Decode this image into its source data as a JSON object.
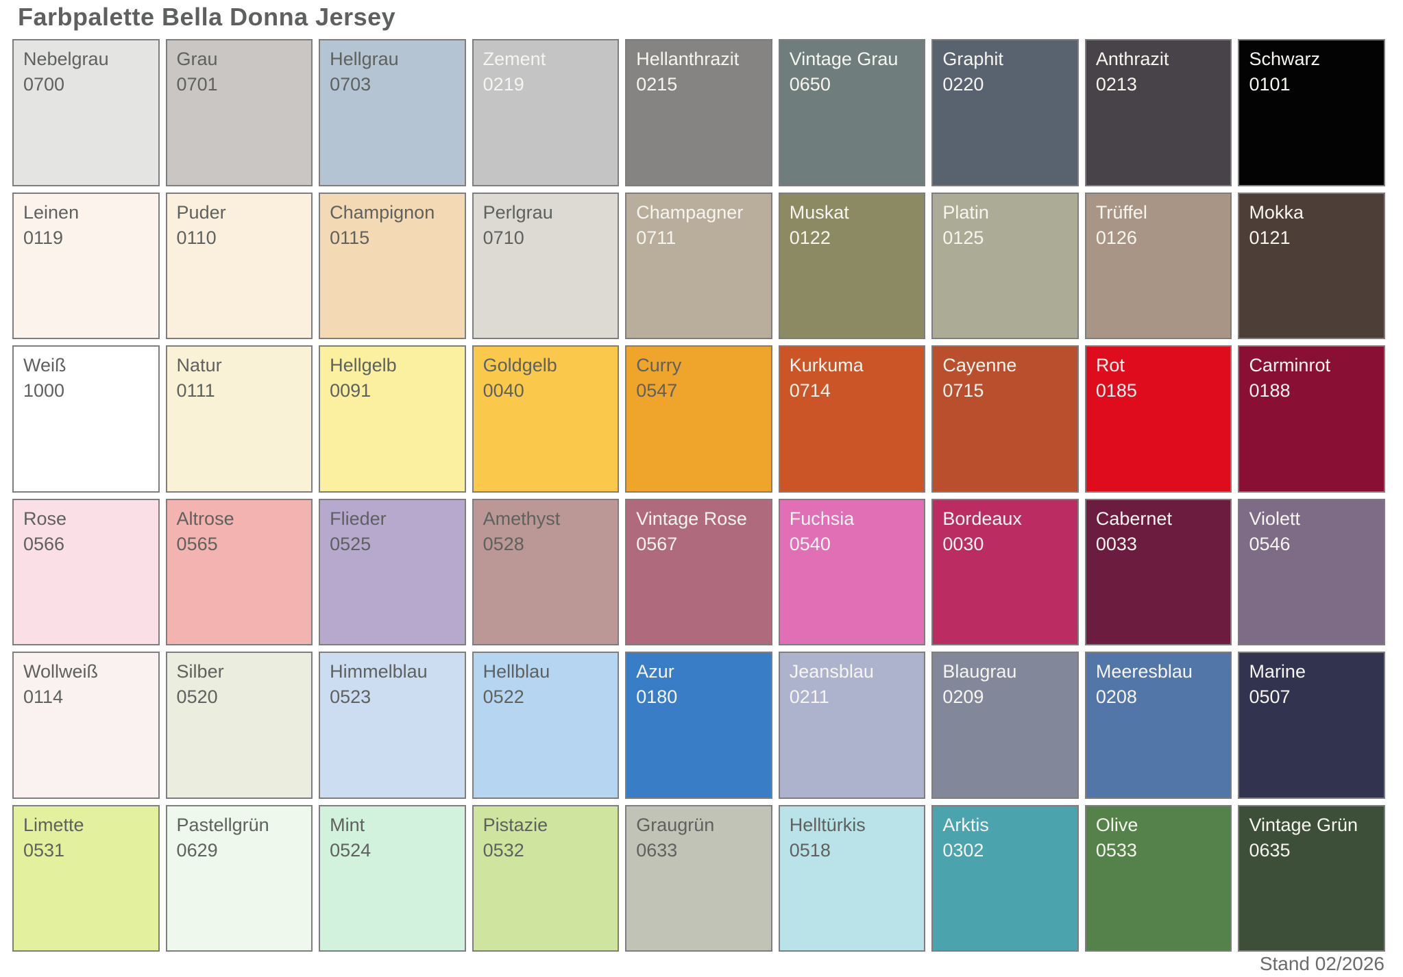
{
  "title": "Farbpalette Bella Donna Jersey",
  "footer": {
    "stand_label": "Stand 02/2026"
  },
  "palette_meta": {
    "rows": 6,
    "columns": 9,
    "swatch_border_color": "#7e7e7e",
    "dark_text_color": "#5e615e",
    "light_text_color": "#f7f5f0",
    "title_color": "#5e605f"
  },
  "chart_data": {
    "type": "table",
    "title": "Farbpalette Bella Donna Jersey",
    "columns": [
      "name",
      "code",
      "hex",
      "text"
    ],
    "grid": {
      "rows": 6,
      "columns": 9
    },
    "swatches": [
      {
        "name": "Nebelgrau",
        "code": "0700",
        "hex": "#e4e4e3",
        "text": "dark"
      },
      {
        "name": "Grau",
        "code": "0701",
        "hex": "#cac6c4",
        "text": "dark"
      },
      {
        "name": "Hellgrau",
        "code": "0703",
        "hex": "#b5c4d2",
        "text": "dark"
      },
      {
        "name": "Zement",
        "code": "0219",
        "hex": "#c3c4c3",
        "text": "light"
      },
      {
        "name": "Hellanthrazit",
        "code": "0215",
        "hex": "#868482",
        "text": "light"
      },
      {
        "name": "Vintage Grau",
        "code": "0650",
        "hex": "#6f7e7c",
        "text": "light"
      },
      {
        "name": "Graphit",
        "code": "0220",
        "hex": "#59636f",
        "text": "light"
      },
      {
        "name": "Anthrazit",
        "code": "0213",
        "hex": "#474349",
        "text": "light"
      },
      {
        "name": "Schwarz",
        "code": "0101",
        "hex": "#030303",
        "text": "light"
      },
      {
        "name": "Leinen",
        "code": "0119",
        "hex": "#fcf3ed",
        "text": "dark"
      },
      {
        "name": "Puder",
        "code": "0110",
        "hex": "#fbf0dd",
        "text": "dark"
      },
      {
        "name": "Champignon",
        "code": "0115",
        "hex": "#f4dab4",
        "text": "dark"
      },
      {
        "name": "Perlgrau",
        "code": "0710",
        "hex": "#dcdad2",
        "text": "dark"
      },
      {
        "name": "Champagner",
        "code": "0711",
        "hex": "#b9ae9c",
        "text": "light"
      },
      {
        "name": "Muskat",
        "code": "0122",
        "hex": "#8b8a62",
        "text": "light"
      },
      {
        "name": "Platin",
        "code": "0125",
        "hex": "#abab96",
        "text": "light"
      },
      {
        "name": "Trüffel",
        "code": "0126",
        "hex": "#a89585",
        "text": "light"
      },
      {
        "name": "Mokka",
        "code": "0121",
        "hex": "#4d3f37",
        "text": "light"
      },
      {
        "name": "Weiß",
        "code": "1000",
        "hex": "#ffffff",
        "text": "dark"
      },
      {
        "name": "Natur",
        "code": "0111",
        "hex": "#faf2d7",
        "text": "dark"
      },
      {
        "name": "Hellgelb",
        "code": "0091",
        "hex": "#fbf0a0",
        "text": "dark"
      },
      {
        "name": "Goldgelb",
        "code": "0040",
        "hex": "#fac84b",
        "text": "dark"
      },
      {
        "name": "Curry",
        "code": "0547",
        "hex": "#efa42c",
        "text": "dark"
      },
      {
        "name": "Kurkuma",
        "code": "0714",
        "hex": "#cb5527",
        "text": "light"
      },
      {
        "name": "Cayenne",
        "code": "0715",
        "hex": "#b94f2c",
        "text": "light"
      },
      {
        "name": "Rot",
        "code": "0185",
        "hex": "#df0c1e",
        "text": "light"
      },
      {
        "name": "Carminrot",
        "code": "0188",
        "hex": "#8a0f35",
        "text": "light"
      },
      {
        "name": "Rose",
        "code": "0566",
        "hex": "#fadfe6",
        "text": "dark"
      },
      {
        "name": "Altrose",
        "code": "0565",
        "hex": "#f3b3b0",
        "text": "dark"
      },
      {
        "name": "Flieder",
        "code": "0525",
        "hex": "#b6a9cd",
        "text": "dark"
      },
      {
        "name": "Amethyst",
        "code": "0528",
        "hex": "#bb9795",
        "text": "dark"
      },
      {
        "name": "Vintage Rose",
        "code": "0567",
        "hex": "#b06a7d",
        "text": "light"
      },
      {
        "name": "Fuchsia",
        "code": "0540",
        "hex": "#e06fb5",
        "text": "light"
      },
      {
        "name": "Bordeaux",
        "code": "0030",
        "hex": "#bb2c62",
        "text": "light"
      },
      {
        "name": "Cabernet",
        "code": "0033",
        "hex": "#6c1c3e",
        "text": "light"
      },
      {
        "name": "Violett",
        "code": "0546",
        "hex": "#7e6b85",
        "text": "light"
      },
      {
        "name": "Wollweiß",
        "code": "0114",
        "hex": "#faf2f0",
        "text": "dark"
      },
      {
        "name": "Silber",
        "code": "0520",
        "hex": "#ebeddf",
        "text": "dark"
      },
      {
        "name": "Himmelblau",
        "code": "0523",
        "hex": "#ccdcf1",
        "text": "dark"
      },
      {
        "name": "Hellblau",
        "code": "0522",
        "hex": "#b5d5f1",
        "text": "dark"
      },
      {
        "name": "Azur",
        "code": "0180",
        "hex": "#3a7dc7",
        "text": "light"
      },
      {
        "name": "Jeansblau",
        "code": "0211",
        "hex": "#aeb3cd",
        "text": "light"
      },
      {
        "name": "Blaugrau",
        "code": "0209",
        "hex": "#83879a",
        "text": "light"
      },
      {
        "name": "Meeresblau",
        "code": "0208",
        "hex": "#5376a8",
        "text": "light"
      },
      {
        "name": "Marine",
        "code": "0507",
        "hex": "#32334e",
        "text": "light"
      },
      {
        "name": "Limette",
        "code": "0531",
        "hex": "#e3f09e",
        "text": "dark"
      },
      {
        "name": "Pastellgrün",
        "code": "0629",
        "hex": "#eef8ec",
        "text": "dark"
      },
      {
        "name": "Mint",
        "code": "0524",
        "hex": "#d3f2de",
        "text": "dark"
      },
      {
        "name": "Pistazie",
        "code": "0532",
        "hex": "#cfe49e",
        "text": "dark"
      },
      {
        "name": "Graugrün",
        "code": "0633",
        "hex": "#c1c3b6",
        "text": "dark"
      },
      {
        "name": "Helltürkis",
        "code": "0518",
        "hex": "#b9e3e9",
        "text": "dark"
      },
      {
        "name": "Arktis",
        "code": "0302",
        "hex": "#4aa3ad",
        "text": "light"
      },
      {
        "name": "Olive",
        "code": "0533",
        "hex": "#55824b",
        "text": "light"
      },
      {
        "name": "Vintage Grün",
        "code": "0635",
        "hex": "#3d4f38",
        "text": "light"
      }
    ]
  }
}
